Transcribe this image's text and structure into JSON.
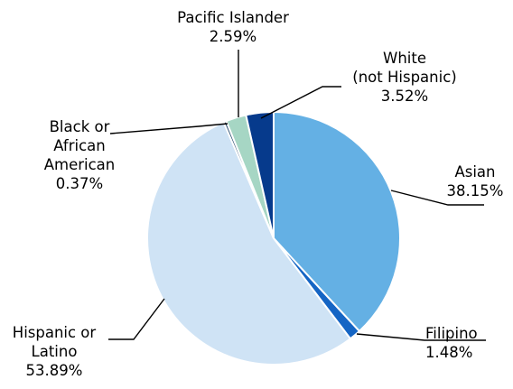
{
  "chart_data": {
    "type": "pie",
    "title": "",
    "start_angle_deg": 0,
    "direction": "clockwise",
    "slices": [
      {
        "label_lines": [
          "Asian"
        ],
        "value_text": "38.15%",
        "value": 38.15,
        "color": "#64B0E4"
      },
      {
        "label_lines": [
          "Filipino"
        ],
        "value_text": "1.48%",
        "value": 1.48,
        "color": "#1565C4"
      },
      {
        "label_lines": [
          "Hispanic or",
          "Latino"
        ],
        "value_text": "53.89%",
        "value": 53.89,
        "color": "#CFE3F5"
      },
      {
        "label_lines": [
          "Black or",
          "African",
          "American"
        ],
        "value_text": "0.37%",
        "value": 0.37,
        "color": "#2A4D70"
      },
      {
        "label_lines": [
          "Pacific Islander"
        ],
        "value_text": "2.59%",
        "value": 2.59,
        "color": "#A6D6C4"
      },
      {
        "label_lines": [
          "White",
          "(not Hispanic)"
        ],
        "value_text": "3.52%",
        "value": 3.52,
        "color": "#063A8C"
      }
    ]
  }
}
